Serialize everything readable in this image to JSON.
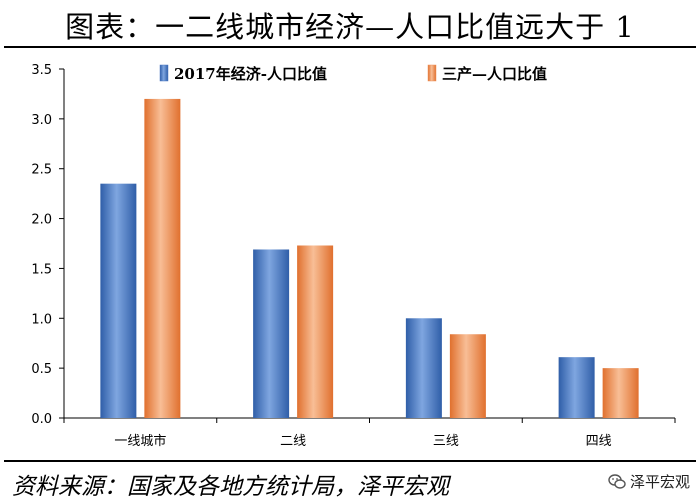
{
  "title": "图表：一二线城市经济—人口比值远大于 1",
  "source": "资料来源：国家及各地方统计局，泽平宏观",
  "brand": {
    "label": "泽平宏观",
    "icon": "wechat-icon"
  },
  "colors": {
    "series1": "#4a78c2",
    "series2": "#f0925a"
  },
  "chart_data": {
    "type": "bar",
    "title": "",
    "xlabel": "",
    "ylabel": "",
    "categories": [
      "一线城市",
      "二线",
      "三线",
      "四线"
    ],
    "series": [
      {
        "name": "2017年经济-人口比值",
        "values": [
          2.35,
          1.69,
          1.0,
          0.61
        ]
      },
      {
        "name": "三产—人口比值",
        "values": [
          3.2,
          1.73,
          0.84,
          0.5
        ]
      }
    ],
    "ylim": [
      0,
      3.5
    ],
    "yticks": [
      "0.0",
      "0.5",
      "1.0",
      "1.5",
      "2.0",
      "2.5",
      "3.0",
      "3.5"
    ],
    "grid": false,
    "legend": "top-center"
  }
}
